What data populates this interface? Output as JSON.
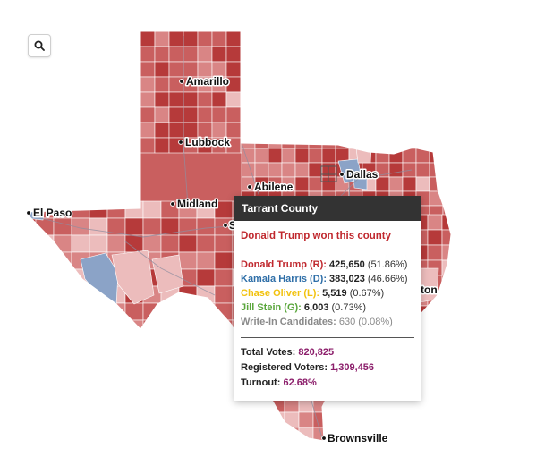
{
  "map": {
    "colors": {
      "dem": "#8ba3c7",
      "dem_light": "#c7d2e4",
      "rep_dark": "#b63a3a",
      "rep": "#c95f5f",
      "rep_mid": "#d98585",
      "rep_light": "#ecbcbc",
      "border": "#ffffff"
    },
    "cities": [
      {
        "name": "Amarillo"
      },
      {
        "name": "Lubbock"
      },
      {
        "name": "Dallas"
      },
      {
        "name": "Abilene"
      },
      {
        "name": "Midland"
      },
      {
        "name": "El Paso"
      },
      {
        "name": "S"
      },
      {
        "name": "ton"
      },
      {
        "name": "Brownsville"
      }
    ]
  },
  "zoom_button": {
    "icon": "search-icon"
  },
  "tooltip": {
    "county": "Tarrant County",
    "winner_text": "Donald Trump won this county",
    "candidates": [
      {
        "label": "Donald Trump (R):",
        "votes": "425,650",
        "pct": "(51.86%)",
        "color": "#c0282e"
      },
      {
        "label": "Kamala Harris (D):",
        "votes": "383,023",
        "pct": "(46.66%)",
        "color": "#2f6fa8"
      },
      {
        "label": "Chase Oliver (L):",
        "votes": "5,519",
        "pct": "(0.67%)",
        "color": "#f2c20f"
      },
      {
        "label": "Jill Stein (G):",
        "votes": "6,003",
        "pct": "(0.73%)",
        "color": "#5aa63c"
      },
      {
        "label": "Write-In Candidates:",
        "votes": "630",
        "pct": "(0.08%)",
        "color": "#8a8a8a"
      }
    ],
    "totals": {
      "total_label": "Total Votes:",
      "total_value": "820,825",
      "registered_label": "Registered Voters:",
      "registered_value": "1,309,456",
      "turnout_label": "Turnout:",
      "turnout_value": "62.68%"
    }
  }
}
